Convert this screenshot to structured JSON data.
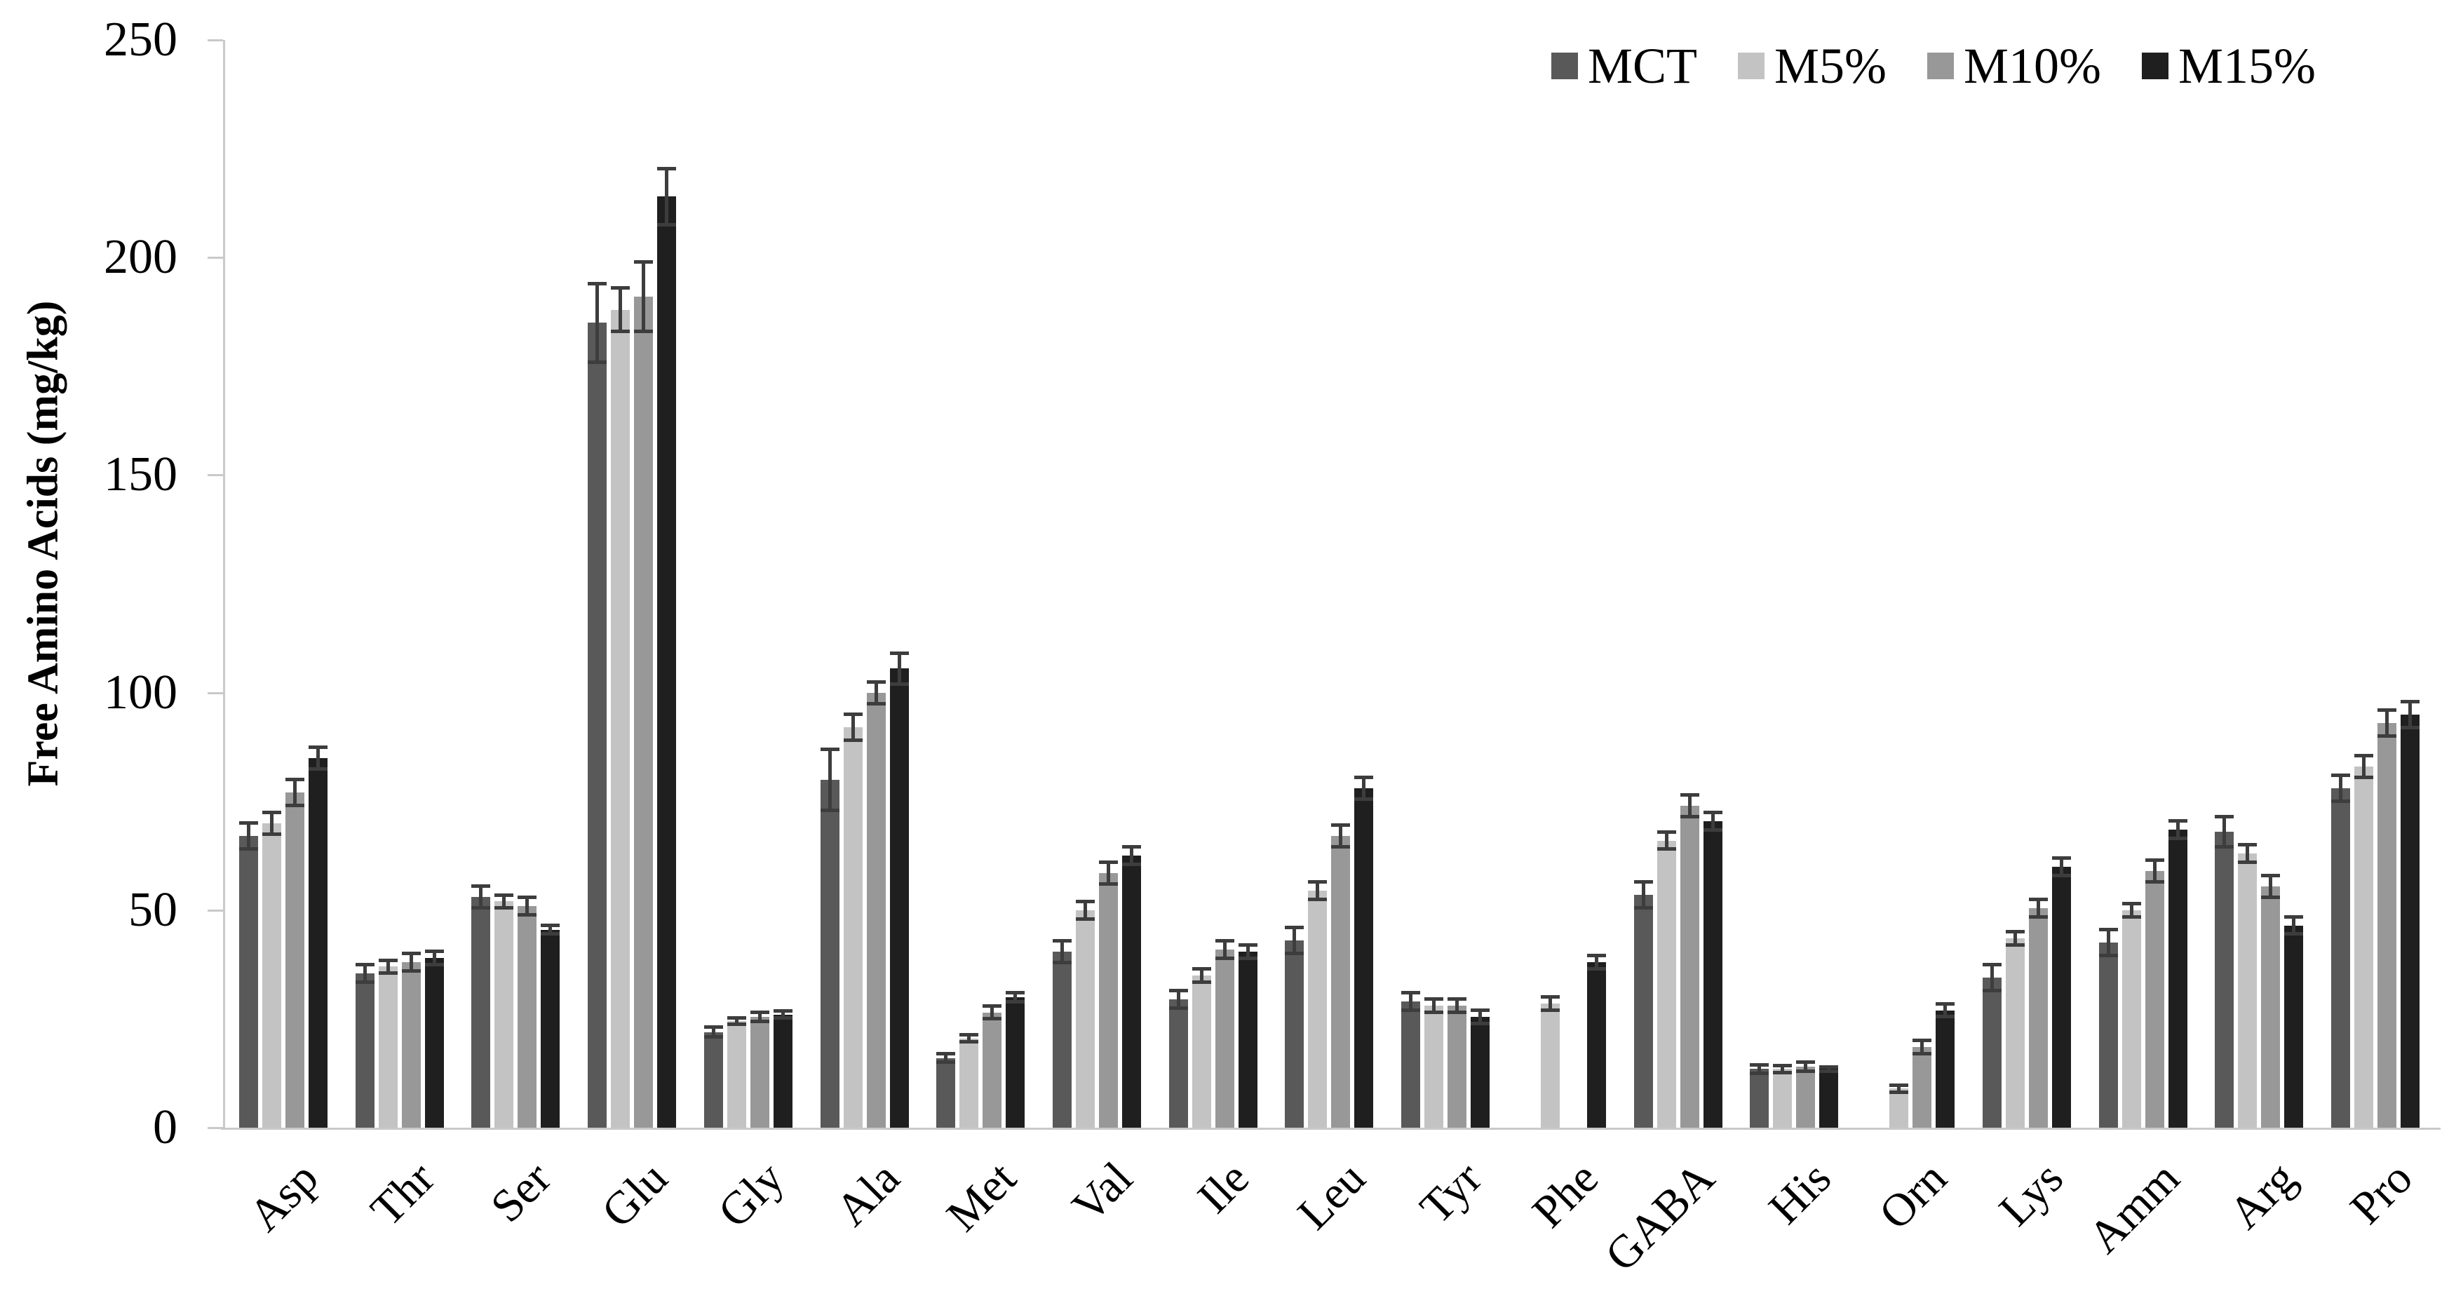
{
  "chart_data": {
    "type": "bar",
    "title": "",
    "xlabel": "",
    "ylabel": "Free Amino Acids (mg/kg)",
    "ylim": [
      0,
      250
    ],
    "yticks": [
      0,
      50,
      100,
      150,
      200,
      250
    ],
    "grid": false,
    "legend_position": "top-right",
    "categories": [
      "Asp",
      "Thr",
      "Ser",
      "Glu",
      "Gly",
      "Ala",
      "Met",
      "Val",
      "Ile",
      "Leu",
      "Tyr",
      "Phe",
      "GABA",
      "His",
      "Orn",
      "Lys",
      "Amm",
      "Arg",
      "Pro"
    ],
    "series": [
      {
        "name": "MCT",
        "color": "#595959",
        "values": [
          67,
          35.5,
          53,
          185,
          22,
          80,
          16,
          40.5,
          29.5,
          43,
          29,
          0,
          53.5,
          13.5,
          0,
          34.5,
          42.5,
          68,
          78
        ],
        "errors": [
          3,
          2,
          2.5,
          9,
          1.2,
          7,
          1,
          2.5,
          2,
          3,
          2,
          0,
          3,
          1,
          0,
          3,
          3,
          3.5,
          3
        ]
      },
      {
        "name": "M5%",
        "color": "#c3c3c3",
        "values": [
          70,
          37,
          52,
          188,
          24.5,
          92,
          20.5,
          50,
          35,
          54.5,
          28,
          28.5,
          66,
          13.5,
          9,
          43.5,
          50,
          63,
          83
        ],
        "errors": [
          2.5,
          1.5,
          1.5,
          5,
          0.8,
          3,
          0.8,
          2,
          1.5,
          2,
          1.5,
          1.5,
          2,
          0.8,
          0.8,
          1.5,
          1.5,
          2,
          2.5
        ]
      },
      {
        "name": "M10%",
        "color": "#989898",
        "values": [
          77,
          38,
          51,
          191,
          25.5,
          100,
          26.5,
          58.5,
          41,
          67,
          28,
          0,
          74,
          14,
          18.5,
          50.5,
          59,
          55.5,
          93
        ],
        "errors": [
          3,
          2,
          2,
          8,
          1,
          2.5,
          1.5,
          2.5,
          2,
          2.5,
          1.5,
          0,
          2.5,
          1,
          1.5,
          2,
          2.5,
          2.5,
          3
        ]
      },
      {
        "name": "M15%",
        "color": "#1f1f1f",
        "values": [
          85,
          39,
          45.5,
          214,
          26,
          105.5,
          30,
          62.5,
          40.5,
          78,
          25.5,
          38,
          70.5,
          13.5,
          27,
          60,
          68.5,
          46.5,
          95
        ],
        "errors": [
          2.5,
          1.5,
          1,
          6.5,
          0.8,
          3.5,
          1,
          2,
          1.5,
          2.5,
          1.5,
          1.5,
          2,
          0.5,
          1.5,
          2,
          2,
          2,
          3
        ]
      }
    ],
    "error_bar_color": "#3d3d3d",
    "axis_color": "#c9c9c9",
    "text_color": "#000000"
  }
}
